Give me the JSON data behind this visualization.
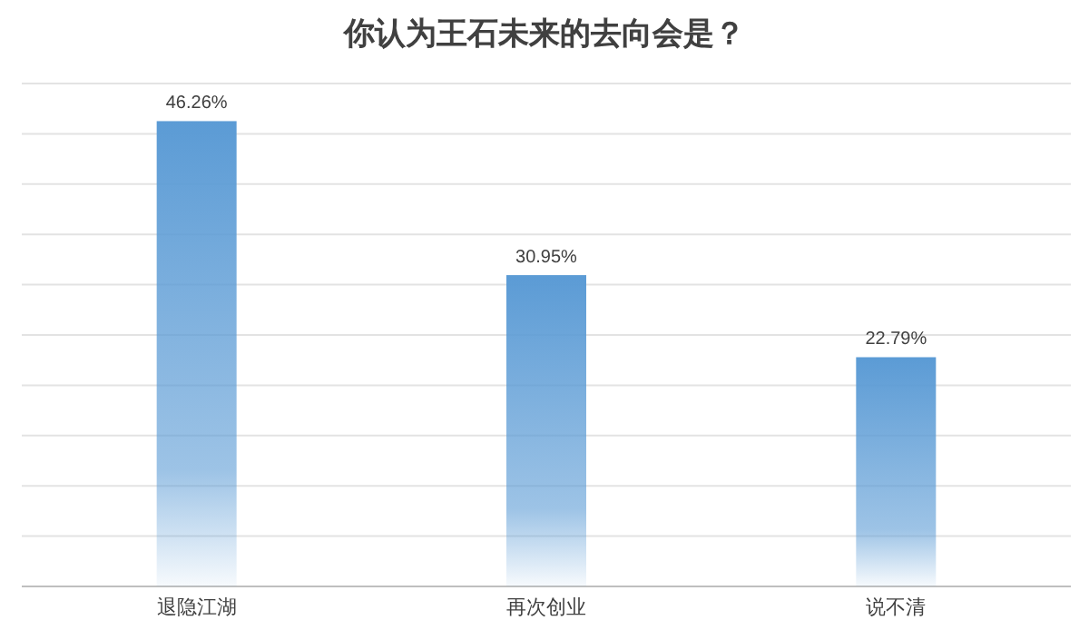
{
  "chart_data": {
    "type": "bar",
    "title": "你认为王石未来的去向会是？",
    "categories": [
      "退隐江湖",
      "再次创业",
      "说不清"
    ],
    "values": [
      46.26,
      30.95,
      22.79
    ],
    "value_labels": [
      "46.26%",
      "30.95%",
      "22.79%"
    ],
    "color": "#5b9bd5",
    "ylim": [
      0,
      50
    ],
    "yticks": [
      {
        "value": 0,
        "label": null
      },
      {
        "value": 5,
        "label": null
      },
      {
        "value": 10,
        "label": null
      },
      {
        "value": 15,
        "label": null
      },
      {
        "value": 20,
        "label": null
      },
      {
        "value": 25,
        "label": null
      },
      {
        "value": 30,
        "label": null
      },
      {
        "value": 35,
        "label": null
      },
      {
        "value": 40,
        "label": null
      },
      {
        "value": 45,
        "label": null
      },
      {
        "value": 50,
        "label": null
      }
    ],
    "grid": "y",
    "tick_labels": "x"
  }
}
